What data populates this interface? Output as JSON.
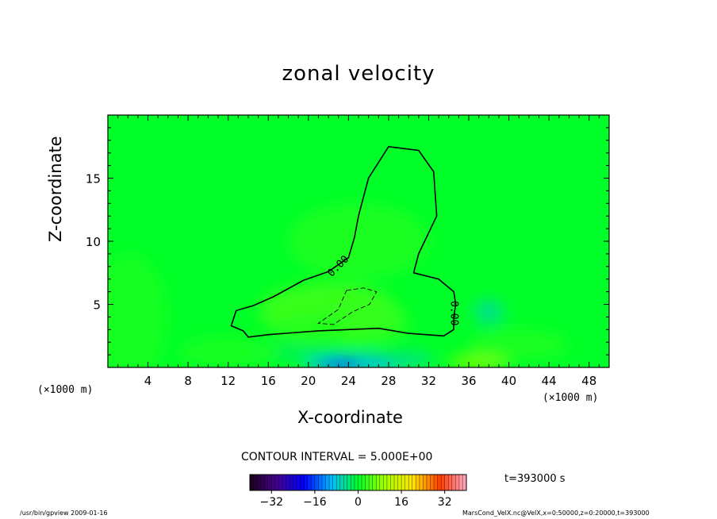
{
  "chart_data": {
    "type": "heatmap",
    "title": "zonal velocity",
    "xlabel": "X-coordinate",
    "ylabel": "Z-coordinate",
    "x_unit": "(×1000 m)",
    "xlim": [
      0,
      50
    ],
    "ylim": [
      0,
      20
    ],
    "xticks": [
      4,
      8,
      12,
      16,
      20,
      24,
      28,
      32,
      36,
      40,
      44,
      48
    ],
    "yticks": [
      5,
      10,
      15
    ],
    "contour_interval": "CONTOUR INTERVAL = 5.000E+00",
    "contour_labels": [
      {
        "text": "0.00",
        "x": 23,
        "z": 8,
        "rotate": -45
      },
      {
        "text": "0.00",
        "x": 34.5,
        "z": 4.3,
        "rotate": 90
      }
    ],
    "colorbar": {
      "min": -40,
      "max": 40,
      "ticks": [
        -32,
        -16,
        0,
        16,
        32
      ],
      "tick_labels": [
        "−32",
        "−16",
        "0",
        "16",
        "32"
      ]
    },
    "time_label": "t=393000 s",
    "zero_contour": [
      [
        28,
        17.5
      ],
      [
        31,
        17.2
      ],
      [
        32.5,
        15.5
      ],
      [
        32.8,
        12
      ],
      [
        31,
        9
      ],
      [
        30.5,
        7.5
      ],
      [
        33,
        7
      ],
      [
        34.5,
        6
      ],
      [
        34.7,
        5
      ],
      [
        34.5,
        4
      ],
      [
        34.5,
        3
      ],
      [
        33.5,
        2.5
      ],
      [
        30,
        2.7
      ],
      [
        27,
        3.1
      ],
      [
        24,
        3
      ],
      [
        21,
        2.9
      ],
      [
        16,
        2.6
      ],
      [
        14,
        2.4
      ],
      [
        13.5,
        2.9
      ],
      [
        12.3,
        3.3
      ],
      [
        12.8,
        4.5
      ],
      [
        14.5,
        4.9
      ],
      [
        16.5,
        5.6
      ],
      [
        19.5,
        6.9
      ],
      [
        22,
        7.6
      ],
      [
        24,
        8.7
      ],
      [
        24.6,
        10.3
      ],
      [
        25,
        12
      ],
      [
        26,
        15
      ],
      [
        28,
        17.5
      ]
    ],
    "negative_contour": [
      [
        23.8,
        6.1
      ],
      [
        25.5,
        6.3
      ],
      [
        26.8,
        6
      ],
      [
        26.1,
        5
      ],
      [
        24.4,
        4.4
      ],
      [
        22.5,
        3.4
      ],
      [
        21,
        3.5
      ],
      [
        23,
        4.6
      ],
      [
        23.8,
        6.1
      ]
    ],
    "fields": [
      {
        "x": 25,
        "z": 10,
        "rx": 7,
        "rz": 3,
        "v": 2
      },
      {
        "x": 22,
        "z": 4.5,
        "rx": 7,
        "rz": 2.2,
        "v": 4
      },
      {
        "x": 25,
        "z": 3.5,
        "rx": 5,
        "rz": 1.8,
        "v": 3
      },
      {
        "x": 20,
        "z": 3,
        "rx": 4,
        "rz": 1.2,
        "v": 2
      },
      {
        "x": 25,
        "z": 0.3,
        "rx": 5.5,
        "rz": 0.7,
        "v": -10
      },
      {
        "x": 23,
        "z": 0.2,
        "rx": 2,
        "rz": 0.45,
        "v": -16
      },
      {
        "x": 30,
        "z": 0.6,
        "rx": 2.5,
        "rz": 0.7,
        "v": -4
      },
      {
        "x": 18.5,
        "z": 1.2,
        "rx": 5,
        "rz": 0.7,
        "v": -2
      },
      {
        "x": 37,
        "z": 0.4,
        "rx": 3,
        "rz": 0.6,
        "v": 8
      },
      {
        "x": 38,
        "z": 4.4,
        "rx": 1.5,
        "rz": 1,
        "v": -5
      },
      {
        "x": 41,
        "z": 1.8,
        "rx": 5,
        "rz": 1.2,
        "v": 2
      },
      {
        "x": 12,
        "z": 1.2,
        "rx": 5,
        "rz": 1.3,
        "v": 1.5
      },
      {
        "x": 2,
        "z": 4,
        "rx": 4,
        "rz": 5,
        "v": 1.5
      }
    ]
  },
  "footer": {
    "left": "/usr/bin/gpview   2009-01-16",
    "right": "MarsCond_VelX.nc@VelX,x=0:50000,z=0:20000,t=393000"
  }
}
